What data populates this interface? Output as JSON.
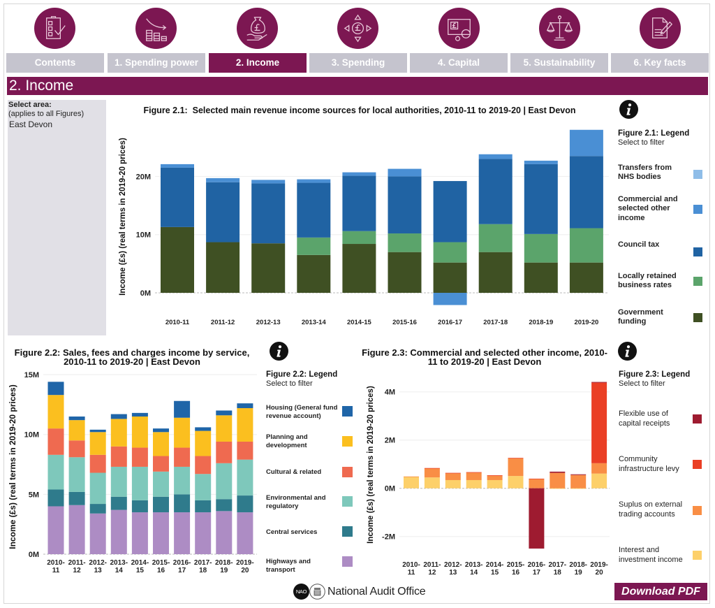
{
  "nav": {
    "icons": [
      "checklist",
      "declining-coins",
      "hand-money-bag",
      "pound-arrows",
      "pound-screen",
      "scales",
      "document-pen"
    ],
    "tabs": [
      {
        "label": "Contents",
        "active": false
      },
      {
        "label": "1. Spending power",
        "active": false
      },
      {
        "label": "2. Income",
        "active": true
      },
      {
        "label": "3. Spending",
        "active": false
      },
      {
        "label": "4. Capital",
        "active": false
      },
      {
        "label": "5. Sustainability",
        "active": false
      },
      {
        "label": "6. Key facts",
        "active": false
      }
    ]
  },
  "header": {
    "title": "2. Income"
  },
  "area_selector": {
    "label": "Select area:",
    "note": "(applies to all Figures)",
    "value": "East Devon"
  },
  "footer": {
    "org_badge": "NAO",
    "org_name": "National Audit Office",
    "download_label": "Download PDF"
  },
  "theme": {
    "brand": "#7c1752",
    "tab_inactive": "#c5c4ce",
    "panel_bg": "#e1e0e6"
  },
  "chart_data": [
    {
      "id": "fig2_1",
      "type": "bar",
      "stacked": true,
      "title": "Figure 2.1:  Selected main revenue income sources for local authorities, 2010-11 to 2019-20 | East Devon",
      "xlabel": "",
      "ylabel": "Income (£s) (real terms in 2019-20 prices)",
      "units": "£ millions",
      "categories": [
        "2010-11",
        "2011-12",
        "2012-13",
        "2013-14",
        "2014-15",
        "2015-16",
        "2016-17",
        "2017-18",
        "2018-19",
        "2019-20"
      ],
      "ylim": [
        -2.5,
        28
      ],
      "y_ticks": [
        0,
        10,
        20
      ],
      "y_tick_labels": [
        "0M",
        "10M",
        "20M"
      ],
      "grid": true,
      "legend": "right",
      "legend_title": "Figure 2.1: Legend",
      "legend_hint": "Select to filter",
      "series": [
        {
          "name": "Transfers from NHS bodies",
          "color": "#8fbde8",
          "values": [
            0,
            0,
            0,
            0,
            0,
            0,
            0,
            0,
            0,
            0
          ]
        },
        {
          "name": "Commercial and selected other income",
          "color": "#4a8fd4",
          "values": [
            0.6,
            0.7,
            0.6,
            0.6,
            0.6,
            1.3,
            -2.1,
            0.8,
            0.6,
            4.5
          ]
        },
        {
          "name": "Council tax",
          "color": "#2063a3",
          "values": [
            10.2,
            10.3,
            10.3,
            9.4,
            9.5,
            9.8,
            10.5,
            11.2,
            12.0,
            12.4
          ]
        },
        {
          "name": "Locally retained business rates",
          "color": "#5ba46b",
          "values": [
            0,
            0,
            0,
            3.0,
            2.2,
            3.2,
            3.5,
            4.8,
            4.9,
            5.9
          ]
        },
        {
          "name": "Government funding",
          "color": "#3f5023",
          "values": [
            11.3,
            8.7,
            8.5,
            6.5,
            8.4,
            7.0,
            5.2,
            7.0,
            5.2,
            5.2
          ]
        }
      ]
    },
    {
      "id": "fig2_2",
      "type": "bar",
      "stacked": true,
      "title": "Figure 2.2: Sales, fees and charges income by service, 2010-11 to 2019-20 | East Devon",
      "xlabel": "",
      "ylabel": "Income (£s) (real terms in 2019-20 prices)",
      "units": "£ millions",
      "categories": [
        "2010-11",
        "2011-12",
        "2012-13",
        "2013-14",
        "2014-15",
        "2015-16",
        "2016-17",
        "2017-18",
        "2018-19",
        "2019-20"
      ],
      "ylim": [
        0,
        15
      ],
      "y_ticks": [
        0,
        5,
        10,
        15
      ],
      "y_tick_labels": [
        "0M",
        "5M",
        "10M",
        "15M"
      ],
      "grid": true,
      "legend": "right",
      "legend_title": "Figure 2.2: Legend",
      "legend_hint": "Select to filter",
      "series": [
        {
          "name": "Housing (General fund revenue account)",
          "color": "#1f65a8",
          "values": [
            1.1,
            0.3,
            0.2,
            0.4,
            0.3,
            0.3,
            1.4,
            0.3,
            0.4,
            0.4
          ]
        },
        {
          "name": "Planning and development",
          "color": "#fbbf1f",
          "values": [
            2.8,
            1.7,
            1.9,
            2.3,
            2.6,
            2.0,
            2.5,
            2.1,
            2.2,
            2.8
          ]
        },
        {
          "name": "Cultural & related",
          "color": "#ef6a50",
          "values": [
            2.2,
            1.4,
            1.5,
            1.7,
            1.6,
            1.3,
            1.6,
            1.5,
            1.8,
            1.5
          ]
        },
        {
          "name": "Environmental and regulatory",
          "color": "#7ec8bb",
          "values": [
            2.9,
            2.9,
            2.6,
            2.5,
            2.8,
            2.1,
            2.3,
            2.2,
            3.0,
            3.0
          ]
        },
        {
          "name": "Central services",
          "color": "#2f7b8c",
          "values": [
            1.4,
            1.1,
            0.8,
            1.1,
            1.0,
            1.3,
            1.5,
            1.0,
            1.0,
            1.4
          ]
        },
        {
          "name": "Highways and transport",
          "color": "#ad8cc4",
          "values": [
            4.0,
            4.1,
            3.4,
            3.7,
            3.5,
            3.5,
            3.5,
            3.5,
            3.6,
            3.5
          ]
        }
      ]
    },
    {
      "id": "fig2_3",
      "type": "bar",
      "stacked": true,
      "title": "Figure 2.3: Commercial and selected other income, 2010-11 to 2019-20 | East Devon",
      "xlabel": "",
      "ylabel": "Income (£s) (real terms in 2019-20 prices)",
      "units": "£ millions",
      "categories": [
        "2010-11",
        "2011-12",
        "2012-13",
        "2013-14",
        "2014-15",
        "2015-16",
        "2016-17",
        "2017-18",
        "2018-19",
        "2019-20"
      ],
      "ylim": [
        -2.7,
        4.5
      ],
      "y_ticks": [
        -2,
        0,
        2,
        4
      ],
      "y_tick_labels": [
        "-2M",
        "0M",
        "2M",
        "4M"
      ],
      "grid": true,
      "legend": "right",
      "legend_title": "Figure 2.3: Legend",
      "legend_hint": "Select to filter",
      "series": [
        {
          "name": "Flexible use of capital receipts",
          "color": "#9e1b30",
          "values": [
            0,
            0,
            0,
            0,
            0,
            0,
            -2.5,
            0.05,
            0.03,
            0.03
          ]
        },
        {
          "name": "Community infrastructure levy",
          "color": "#ea3f25",
          "values": [
            0,
            0.02,
            0.02,
            0.02,
            0.01,
            0.01,
            0.02,
            0,
            0,
            3.34
          ]
        },
        {
          "name": "Suplus on external trading accounts",
          "color": "#f98e45",
          "values": [
            0.02,
            0.37,
            0.28,
            0.31,
            0.19,
            0.74,
            0.38,
            0.64,
            0.55,
            0.43
          ]
        },
        {
          "name": "Interest and investment income",
          "color": "#fdd06a",
          "values": [
            0.47,
            0.45,
            0.34,
            0.34,
            0.34,
            0.51,
            0,
            -0.02,
            -0.02,
            0.61
          ]
        }
      ]
    }
  ]
}
